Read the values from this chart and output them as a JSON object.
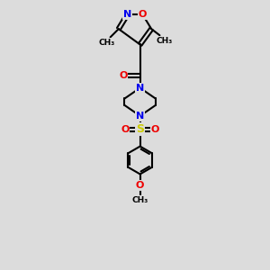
{
  "bg_color": "#dcdcdc",
  "atom_colors": {
    "C": "#000000",
    "N": "#0000ee",
    "O": "#ee0000",
    "S": "#cccc00"
  },
  "bond_color": "#000000",
  "bond_width": 1.5,
  "figsize": [
    3.0,
    3.0
  ],
  "dpi": 100,
  "xlim": [
    0,
    10
  ],
  "ylim": [
    0,
    14
  ]
}
